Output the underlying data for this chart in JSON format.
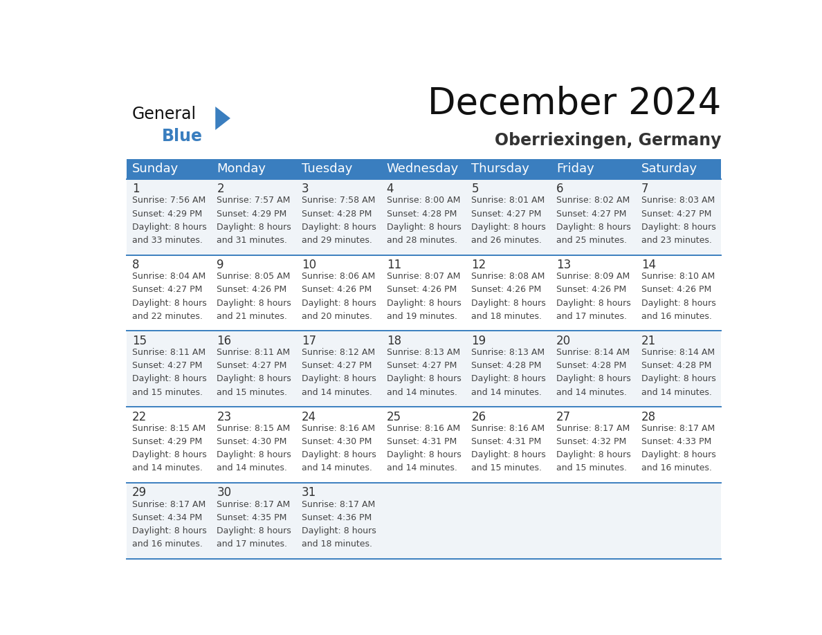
{
  "title": "December 2024",
  "subtitle": "Oberriexingen, Germany",
  "header_color": "#3a7ebf",
  "header_text_color": "#ffffff",
  "background_color": "#ffffff",
  "cell_bg_odd": "#f0f4f8",
  "cell_bg_even": "#ffffff",
  "border_color": "#3a7ebf",
  "text_color": "#444444",
  "day_num_color": "#333333",
  "days_of_week": [
    "Sunday",
    "Monday",
    "Tuesday",
    "Wednesday",
    "Thursday",
    "Friday",
    "Saturday"
  ],
  "weeks": [
    [
      {
        "day": 1,
        "sunrise": "7:56 AM",
        "sunset": "4:29 PM",
        "daylight_h": "8 hours",
        "daylight_m": "33 minutes."
      },
      {
        "day": 2,
        "sunrise": "7:57 AM",
        "sunset": "4:29 PM",
        "daylight_h": "8 hours",
        "daylight_m": "31 minutes."
      },
      {
        "day": 3,
        "sunrise": "7:58 AM",
        "sunset": "4:28 PM",
        "daylight_h": "8 hours",
        "daylight_m": "29 minutes."
      },
      {
        "day": 4,
        "sunrise": "8:00 AM",
        "sunset": "4:28 PM",
        "daylight_h": "8 hours",
        "daylight_m": "28 minutes."
      },
      {
        "day": 5,
        "sunrise": "8:01 AM",
        "sunset": "4:27 PM",
        "daylight_h": "8 hours",
        "daylight_m": "26 minutes."
      },
      {
        "day": 6,
        "sunrise": "8:02 AM",
        "sunset": "4:27 PM",
        "daylight_h": "8 hours",
        "daylight_m": "25 minutes."
      },
      {
        "day": 7,
        "sunrise": "8:03 AM",
        "sunset": "4:27 PM",
        "daylight_h": "8 hours",
        "daylight_m": "23 minutes."
      }
    ],
    [
      {
        "day": 8,
        "sunrise": "8:04 AM",
        "sunset": "4:27 PM",
        "daylight_h": "8 hours",
        "daylight_m": "22 minutes."
      },
      {
        "day": 9,
        "sunrise": "8:05 AM",
        "sunset": "4:26 PM",
        "daylight_h": "8 hours",
        "daylight_m": "21 minutes."
      },
      {
        "day": 10,
        "sunrise": "8:06 AM",
        "sunset": "4:26 PM",
        "daylight_h": "8 hours",
        "daylight_m": "20 minutes."
      },
      {
        "day": 11,
        "sunrise": "8:07 AM",
        "sunset": "4:26 PM",
        "daylight_h": "8 hours",
        "daylight_m": "19 minutes."
      },
      {
        "day": 12,
        "sunrise": "8:08 AM",
        "sunset": "4:26 PM",
        "daylight_h": "8 hours",
        "daylight_m": "18 minutes."
      },
      {
        "day": 13,
        "sunrise": "8:09 AM",
        "sunset": "4:26 PM",
        "daylight_h": "8 hours",
        "daylight_m": "17 minutes."
      },
      {
        "day": 14,
        "sunrise": "8:10 AM",
        "sunset": "4:26 PM",
        "daylight_h": "8 hours",
        "daylight_m": "16 minutes."
      }
    ],
    [
      {
        "day": 15,
        "sunrise": "8:11 AM",
        "sunset": "4:27 PM",
        "daylight_h": "8 hours",
        "daylight_m": "15 minutes."
      },
      {
        "day": 16,
        "sunrise": "8:11 AM",
        "sunset": "4:27 PM",
        "daylight_h": "8 hours",
        "daylight_m": "15 minutes."
      },
      {
        "day": 17,
        "sunrise": "8:12 AM",
        "sunset": "4:27 PM",
        "daylight_h": "8 hours",
        "daylight_m": "14 minutes."
      },
      {
        "day": 18,
        "sunrise": "8:13 AM",
        "sunset": "4:27 PM",
        "daylight_h": "8 hours",
        "daylight_m": "14 minutes."
      },
      {
        "day": 19,
        "sunrise": "8:13 AM",
        "sunset": "4:28 PM",
        "daylight_h": "8 hours",
        "daylight_m": "14 minutes."
      },
      {
        "day": 20,
        "sunrise": "8:14 AM",
        "sunset": "4:28 PM",
        "daylight_h": "8 hours",
        "daylight_m": "14 minutes."
      },
      {
        "day": 21,
        "sunrise": "8:14 AM",
        "sunset": "4:28 PM",
        "daylight_h": "8 hours",
        "daylight_m": "14 minutes."
      }
    ],
    [
      {
        "day": 22,
        "sunrise": "8:15 AM",
        "sunset": "4:29 PM",
        "daylight_h": "8 hours",
        "daylight_m": "14 minutes."
      },
      {
        "day": 23,
        "sunrise": "8:15 AM",
        "sunset": "4:30 PM",
        "daylight_h": "8 hours",
        "daylight_m": "14 minutes."
      },
      {
        "day": 24,
        "sunrise": "8:16 AM",
        "sunset": "4:30 PM",
        "daylight_h": "8 hours",
        "daylight_m": "14 minutes."
      },
      {
        "day": 25,
        "sunrise": "8:16 AM",
        "sunset": "4:31 PM",
        "daylight_h": "8 hours",
        "daylight_m": "14 minutes."
      },
      {
        "day": 26,
        "sunrise": "8:16 AM",
        "sunset": "4:31 PM",
        "daylight_h": "8 hours",
        "daylight_m": "15 minutes."
      },
      {
        "day": 27,
        "sunrise": "8:17 AM",
        "sunset": "4:32 PM",
        "daylight_h": "8 hours",
        "daylight_m": "15 minutes."
      },
      {
        "day": 28,
        "sunrise": "8:17 AM",
        "sunset": "4:33 PM",
        "daylight_h": "8 hours",
        "daylight_m": "16 minutes."
      }
    ],
    [
      {
        "day": 29,
        "sunrise": "8:17 AM",
        "sunset": "4:34 PM",
        "daylight_h": "8 hours",
        "daylight_m": "16 minutes."
      },
      {
        "day": 30,
        "sunrise": "8:17 AM",
        "sunset": "4:35 PM",
        "daylight_h": "8 hours",
        "daylight_m": "17 minutes."
      },
      {
        "day": 31,
        "sunrise": "8:17 AM",
        "sunset": "4:36 PM",
        "daylight_h": "8 hours",
        "daylight_m": "18 minutes."
      },
      null,
      null,
      null,
      null
    ]
  ],
  "title_fontsize": 38,
  "subtitle_fontsize": 17,
  "header_fontsize": 13,
  "day_num_fontsize": 12,
  "cell_text_fontsize": 9
}
